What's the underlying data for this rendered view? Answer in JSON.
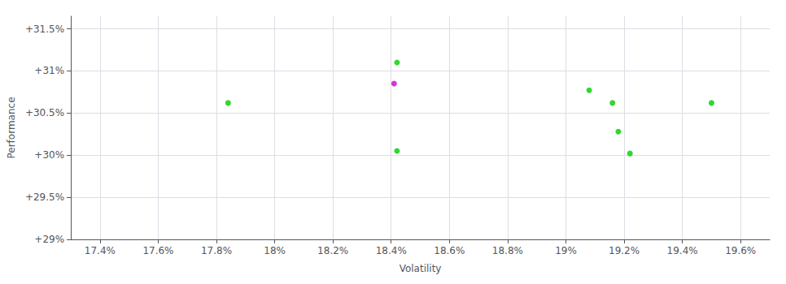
{
  "chart_data": {
    "type": "scatter",
    "xlabel": "Volatility",
    "ylabel": "Performance",
    "xlim": [
      17.3,
      19.7
    ],
    "ylim": [
      29.0,
      31.65
    ],
    "xticks": [
      {
        "value": 17.4,
        "label": "17.4%"
      },
      {
        "value": 17.6,
        "label": "17.6%"
      },
      {
        "value": 17.8,
        "label": "17.8%"
      },
      {
        "value": 18.0,
        "label": "18%"
      },
      {
        "value": 18.2,
        "label": "18.2%"
      },
      {
        "value": 18.4,
        "label": "18.4%"
      },
      {
        "value": 18.6,
        "label": "18.6%"
      },
      {
        "value": 18.8,
        "label": "18.8%"
      },
      {
        "value": 19.0,
        "label": "19%"
      },
      {
        "value": 19.2,
        "label": "19.2%"
      },
      {
        "value": 19.4,
        "label": "19.4%"
      },
      {
        "value": 19.6,
        "label": "19.6%"
      }
    ],
    "yticks": [
      {
        "value": 29.0,
        "label": "+29%"
      },
      {
        "value": 29.5,
        "label": "+29.5%"
      },
      {
        "value": 30.0,
        "label": "+30%"
      },
      {
        "value": 30.5,
        "label": "+30.5%"
      },
      {
        "value": 31.0,
        "label": "+31%"
      },
      {
        "value": 31.5,
        "label": "+31.5%"
      }
    ],
    "grid": true,
    "series": [
      {
        "color": "#00cc00",
        "x": [
          18.42,
          17.84,
          18.42,
          19.08,
          19.16,
          19.18,
          19.22,
          19.5
        ],
        "values": [
          31.1,
          30.62,
          30.05,
          30.77,
          30.62,
          30.28,
          30.02,
          30.62
        ]
      },
      {
        "color": "#cc00cc",
        "x": [
          18.41
        ],
        "values": [
          30.85
        ]
      }
    ]
  }
}
